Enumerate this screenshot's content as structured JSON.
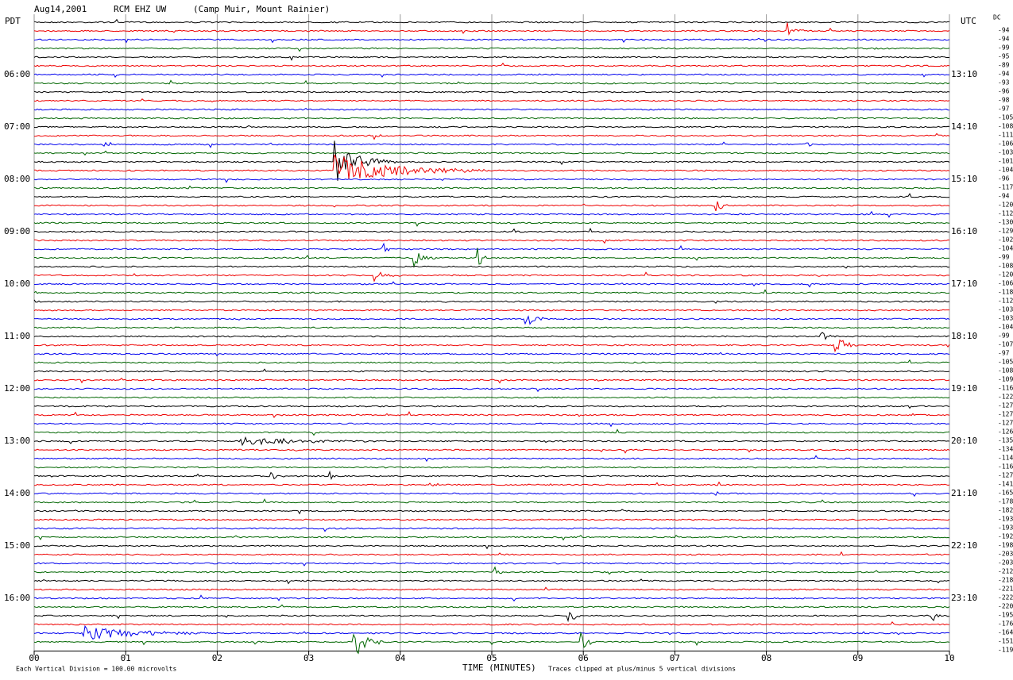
{
  "header": {
    "date": "Aug14,2001",
    "station": "RCM EHZ UW",
    "location": "(Camp Muir, Mount Rainier)"
  },
  "left_label": "PDT",
  "right_label": "UTC",
  "dc_label": "DC",
  "left_times": [
    "06:00",
    "07:00",
    "08:00",
    "09:00",
    "10:00",
    "11:00",
    "12:00",
    "13:00",
    "14:00",
    "15:00",
    "16:00"
  ],
  "right_times": [
    "13:10",
    "14:10",
    "15:10",
    "16:10",
    "17:10",
    "18:10",
    "19:10",
    "20:10",
    "21:10",
    "22:10",
    "23:10"
  ],
  "dc_offsets": [
    -94,
    -94,
    -99,
    -95,
    -89,
    -94,
    -93,
    -96,
    -98,
    -97,
    -105,
    -108,
    -111,
    -106,
    -103,
    -101,
    -104,
    -96,
    -117,
    -94,
    -120,
    -112,
    -130,
    -129,
    -102,
    -104,
    -99,
    -108,
    -120,
    -106,
    -118,
    -112,
    -103,
    -103,
    -104,
    -99,
    -107,
    -97,
    -105,
    -108,
    -109,
    -116,
    -122,
    -127,
    -127,
    -127,
    -126,
    -135,
    -134,
    -114,
    -116,
    -127,
    -141,
    -165,
    -178,
    -182,
    -193,
    -193,
    -192,
    -198,
    -203,
    -203,
    -212,
    -218,
    -221,
    -222,
    -220,
    -195,
    -176,
    -164,
    -151,
    -119
  ],
  "x_ticks": [
    "00",
    "01",
    "02",
    "03",
    "04",
    "05",
    "06",
    "07",
    "08",
    "09",
    "10"
  ],
  "x_axis_label": "TIME (MINUTES)",
  "footer": {
    "scale_note": "Each Vertical Division =  100.00 microvolts",
    "clip_note": "Traces clipped at plus/minus 5 vertical divisions"
  }
}
